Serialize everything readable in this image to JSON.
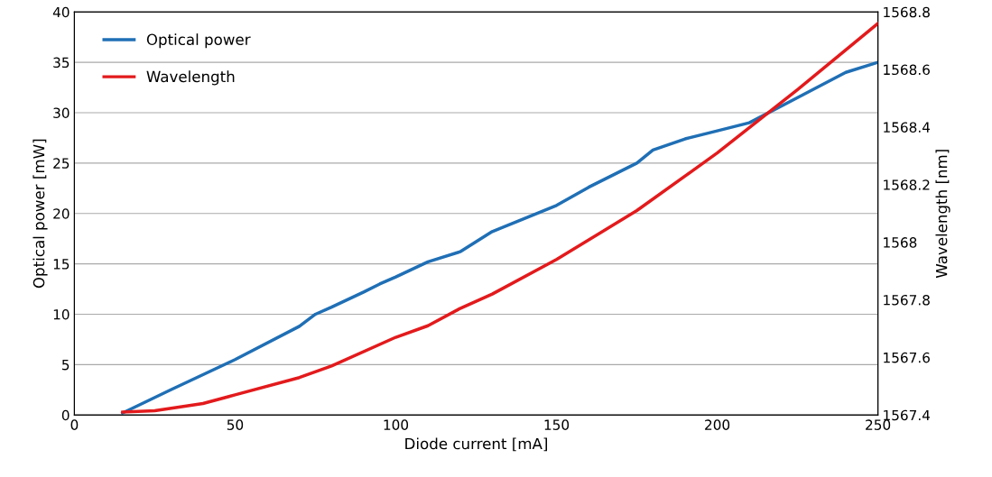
{
  "chart_data": {
    "type": "line",
    "xlabel": "Diode current [mA]",
    "ylabel": "Optical power [mW]",
    "y2label": "Wavelength [nm]",
    "series": [
      {
        "name": "Optical power",
        "color": "#1f6fb5",
        "x": [
          15,
          30,
          50,
          70,
          75,
          80,
          90,
          95,
          100,
          110,
          120,
          130,
          140,
          150,
          160,
          175,
          180,
          190,
          200,
          210,
          225,
          240,
          250
        ],
        "values": [
          0.2,
          2.5,
          5.5,
          8.8,
          10,
          10.7,
          12.2,
          13.0,
          13.7,
          15.2,
          16.2,
          18.2,
          19.5,
          20.8,
          22.6,
          25,
          26.3,
          27.4,
          28.2,
          29,
          31.5,
          34,
          35
        ]
      },
      {
        "name": "Wavelength",
        "color": "#e31a1c",
        "axis": "y2",
        "x": [
          15,
          25,
          40,
          50,
          70,
          80,
          100,
          110,
          120,
          130,
          150,
          175,
          200,
          225,
          250
        ],
        "values": [
          1567.41,
          1567.415,
          1567.44,
          1567.47,
          1567.53,
          1567.57,
          1567.67,
          1567.71,
          1567.77,
          1567.82,
          1567.94,
          1568.11,
          1568.31,
          1568.53,
          1568.76
        ]
      }
    ],
    "xlim": [
      0,
      250
    ],
    "xticks": [
      0,
      50,
      100,
      150,
      200,
      250
    ],
    "ylim": [
      0,
      40
    ],
    "yticks": [
      0,
      5,
      10,
      15,
      20,
      25,
      30,
      35,
      40
    ],
    "y2lim": [
      1567.4,
      1568.8
    ],
    "y2ticks": [
      1567.4,
      1567.6,
      1567.8,
      1568,
      1568.2,
      1568.4,
      1568.6,
      1568.8
    ],
    "grid": "y",
    "legend": "top left",
    "marker": "none",
    "line_style": "solid"
  }
}
